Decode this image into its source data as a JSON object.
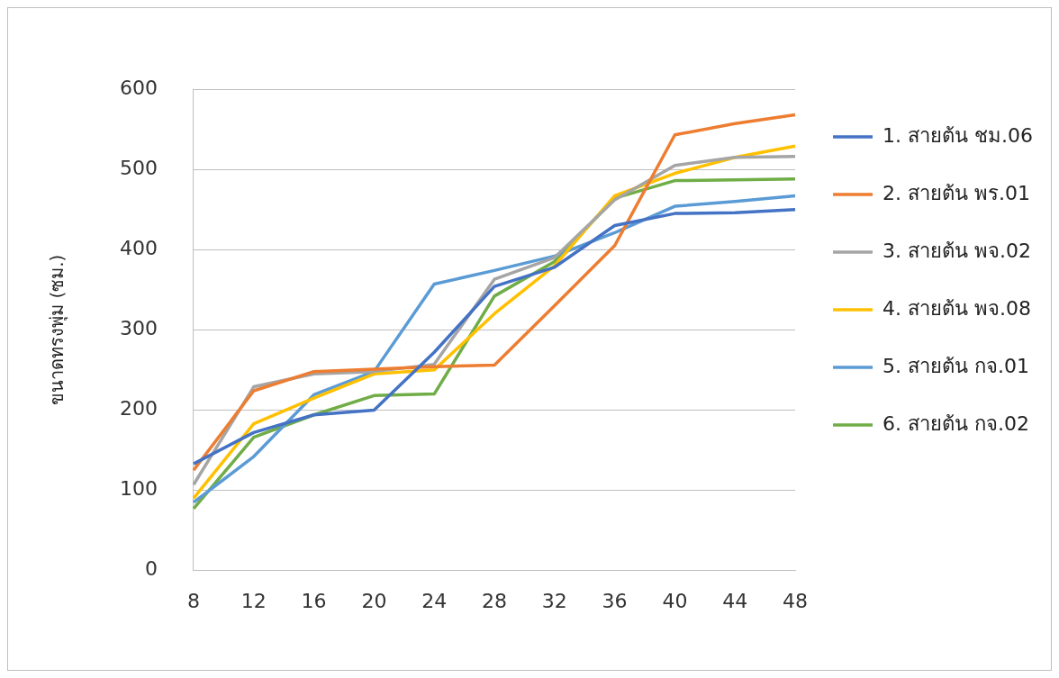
{
  "chart_data": {
    "type": "line",
    "ylabel": "ขนาดทรงพุ่ม (ซม.)",
    "categories": [
      "8",
      "12",
      "16",
      "20",
      "24",
      "28",
      "32",
      "36",
      "40",
      "44",
      "48"
    ],
    "series": [
      {
        "name": "1. สายต้น ชม.06",
        "color": "#4472c4",
        "values": [
          133,
          172,
          194,
          200,
          272,
          354,
          378,
          430,
          445,
          446,
          450
        ]
      },
      {
        "name": "2. สายต้น พร.01",
        "color": "#ed7d31",
        "values": [
          125,
          224,
          248,
          251,
          254,
          256,
          330,
          405,
          543,
          557,
          568
        ]
      },
      {
        "name": "3. สายต้น พจ.02",
        "color": "#a5a5a5",
        "values": [
          107,
          229,
          245,
          248,
          257,
          363,
          390,
          462,
          505,
          515,
          516
        ]
      },
      {
        "name": "4. สายต้น พจ.08",
        "color": "#ffc000",
        "values": [
          90,
          183,
          215,
          245,
          250,
          320,
          380,
          467,
          495,
          515,
          529
        ]
      },
      {
        "name": "5. สายต้น กจ.01",
        "color": "#5b9bd5",
        "values": [
          85,
          142,
          219,
          248,
          357,
          374,
          392,
          421,
          454,
          460,
          467
        ]
      },
      {
        "name": "6. สายต้น กจ.02",
        "color": "#70ad47",
        "values": [
          77,
          166,
          194,
          218,
          220,
          342,
          385,
          464,
          486,
          487,
          488
        ]
      }
    ],
    "ylim": [
      0,
      600
    ],
    "yticks": [
      0,
      100,
      200,
      300,
      400,
      500,
      600
    ],
    "grid": "y",
    "legend": "right"
  }
}
